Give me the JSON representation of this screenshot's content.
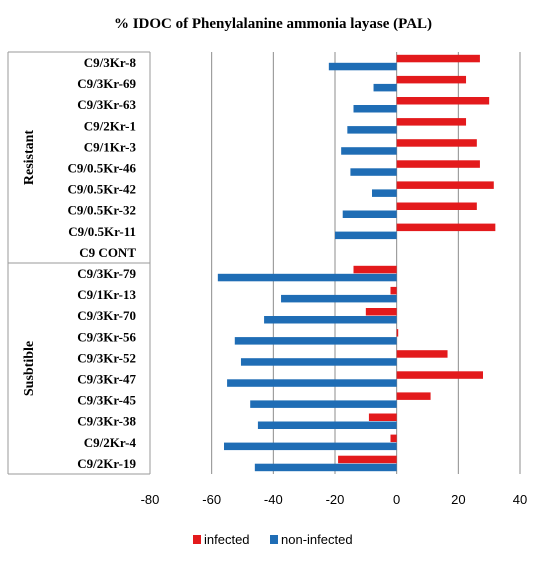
{
  "chart_data": {
    "type": "bar",
    "orientation": "horizontal",
    "title": "% IDOC of  Phenylalanine ammonia layase (PAL)",
    "xlabel": "",
    "ylabel": "",
    "xlim": [
      -80,
      40
    ],
    "xticks": [
      "-80",
      "-60",
      "-40",
      "-20",
      "0",
      "20",
      "40"
    ],
    "grid": true,
    "legend_position": "bottom",
    "colors": {
      "infected": "#e31a1c",
      "non_infected": "#1f6db5"
    },
    "groups": [
      {
        "label": "Resistant",
        "first": 0,
        "last": 9
      },
      {
        "label": "Susbtible",
        "first": 10,
        "last": 19
      }
    ],
    "categories": [
      "C9/3Kr-8",
      "C9/3Kr-69",
      "C9/3Kr-63",
      "C9/2Kr-1",
      "C9/1Kr-3",
      "C9/0.5Kr-46",
      "C9/0.5Kr-42",
      "C9/0.5Kr-32",
      "C9/0.5Kr-11",
      "C9 CONT",
      "C9/3Kr-79",
      "C9/1Kr-13",
      "C9/3Kr-70",
      "C9/3Kr-56",
      "C9/3Kr-52",
      "C9/3Kr-47",
      "C9/3Kr-45",
      "C9/3Kr-38",
      "C9/2Kr-4",
      "C9/2Kr-19"
    ],
    "series": [
      {
        "name": "infected",
        "values": [
          27,
          22.5,
          30,
          22.5,
          26,
          27,
          31.5,
          26,
          32,
          0,
          -14,
          -2,
          -10,
          0.5,
          16.5,
          28,
          11,
          -9,
          -2,
          -19
        ]
      },
      {
        "name": "non-infected",
        "values": [
          -22,
          -7.5,
          -14,
          -16,
          -18,
          -15,
          -8,
          -17.5,
          -20,
          0,
          -58,
          -37.5,
          -43,
          -52.5,
          -50.5,
          -55,
          -47.5,
          -45,
          -56,
          -46
        ]
      }
    ]
  }
}
